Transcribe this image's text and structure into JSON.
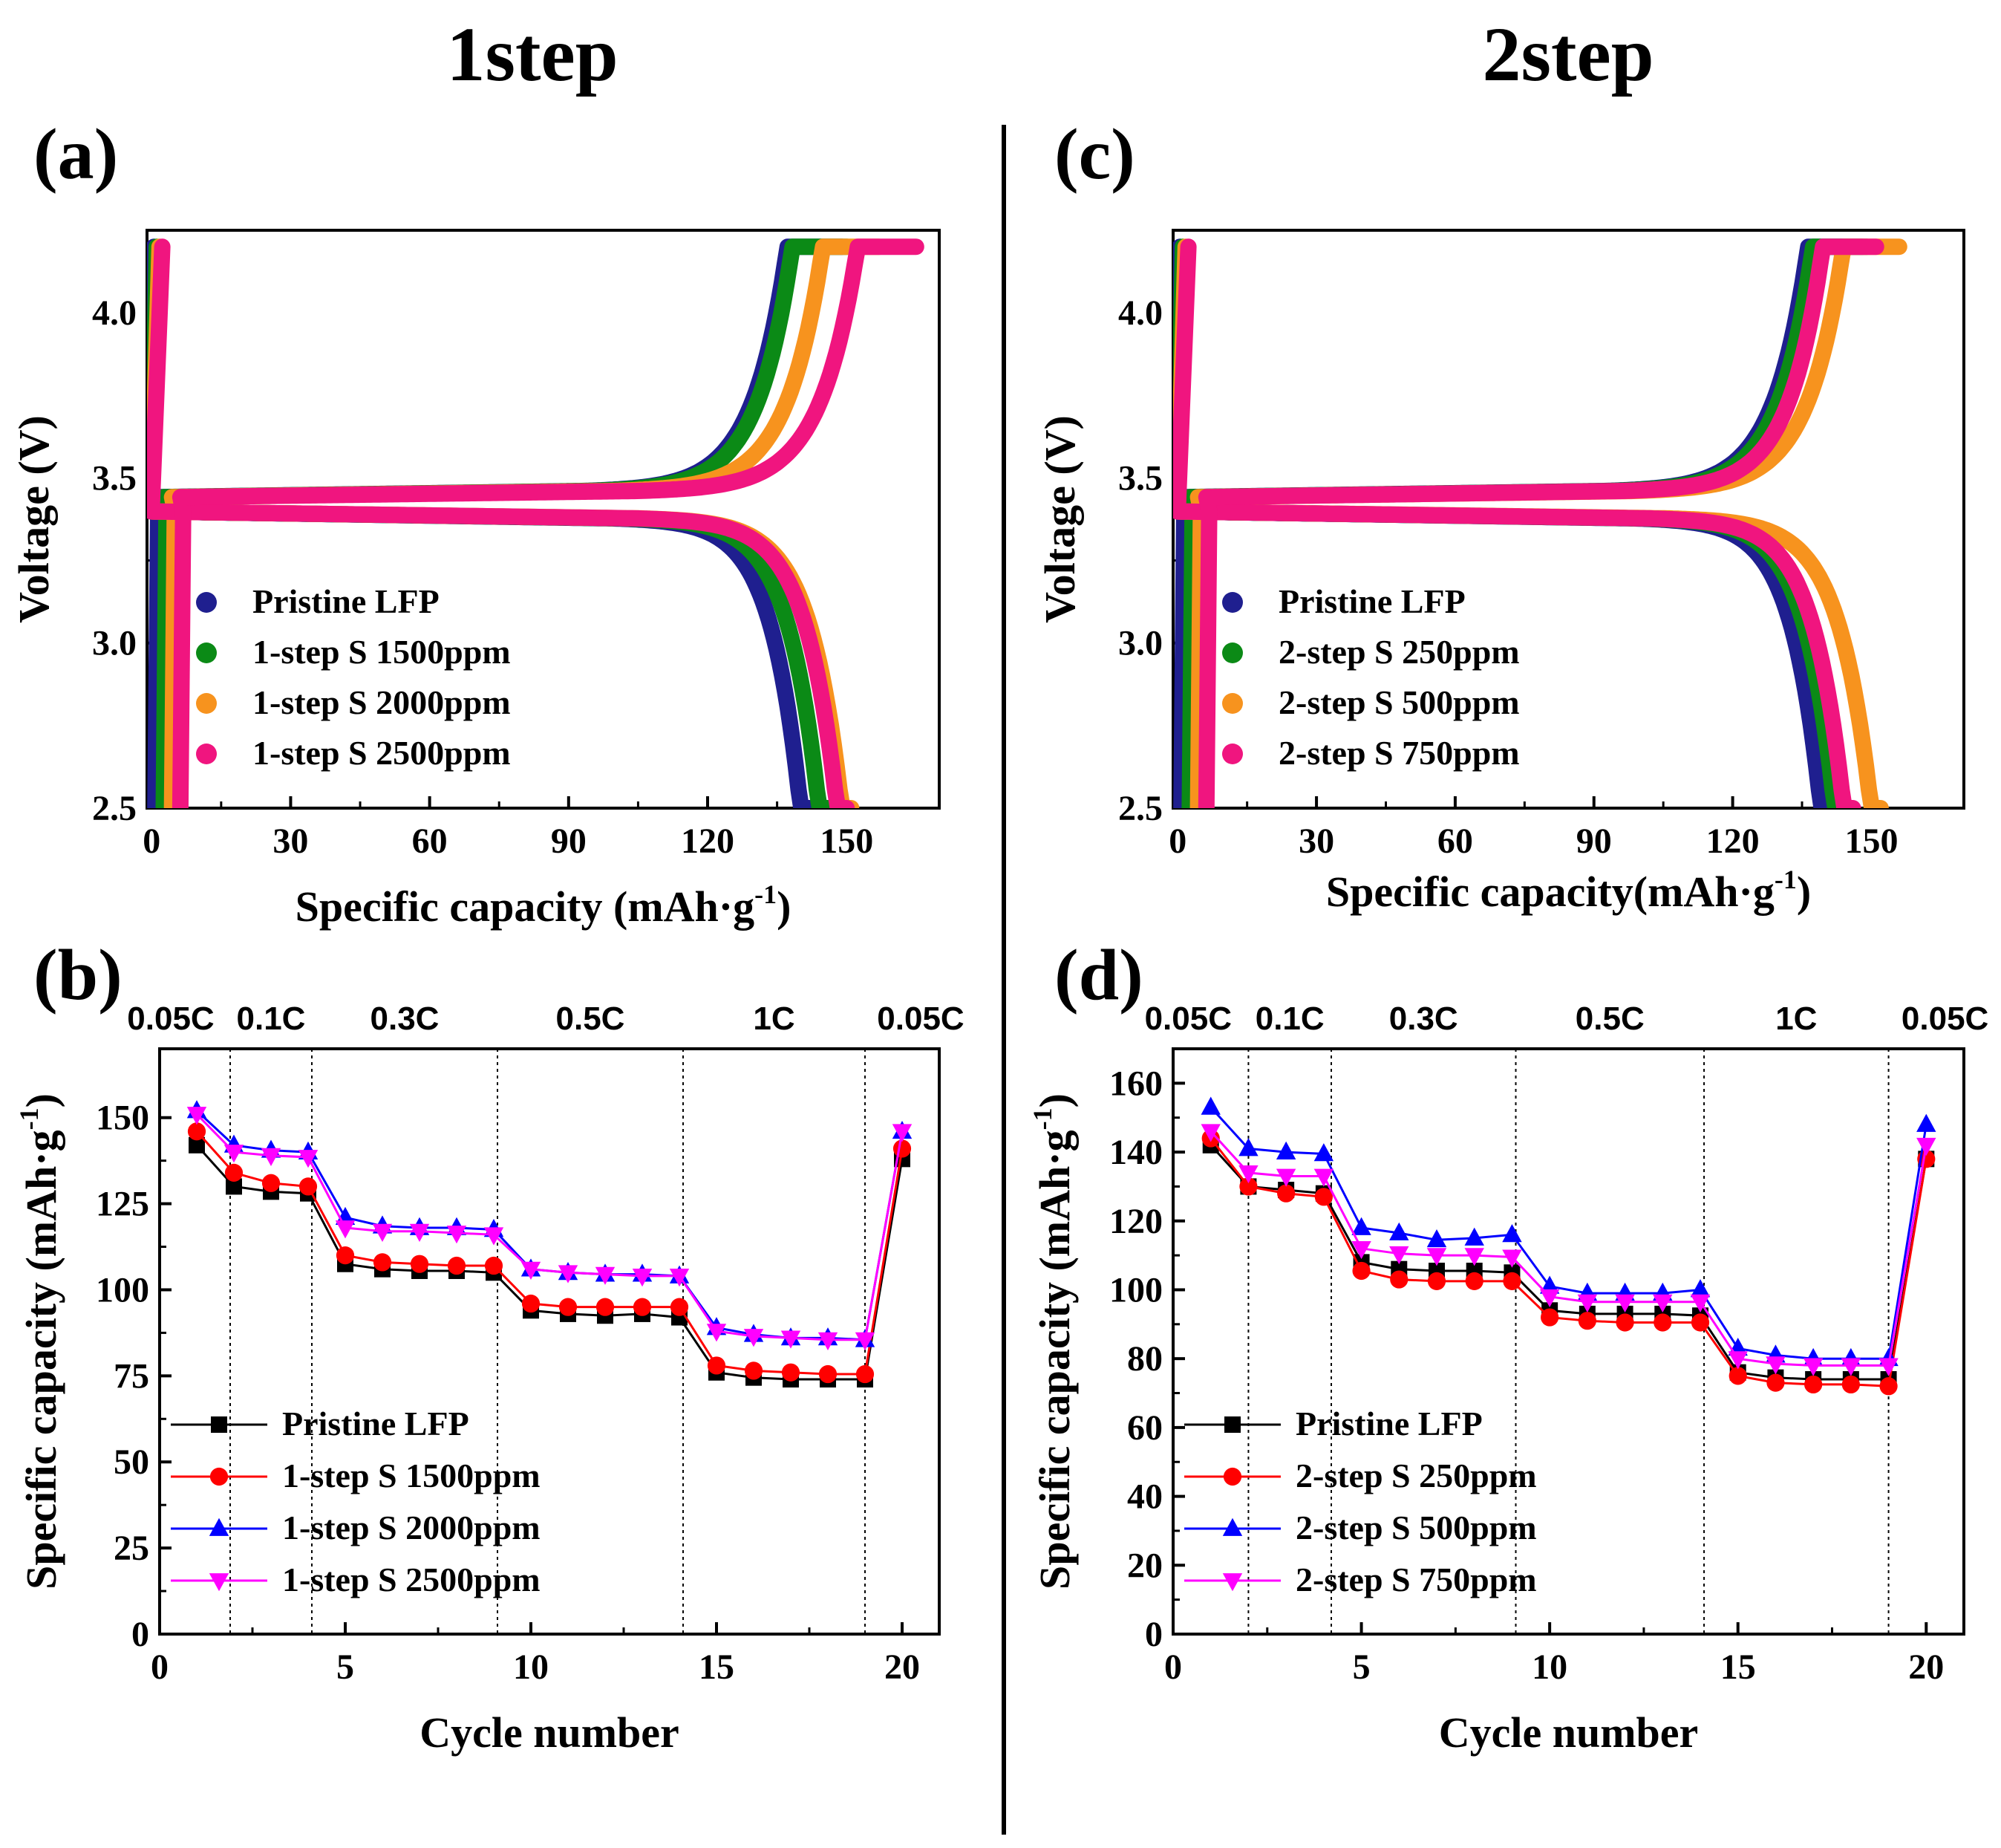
{
  "headers": {
    "left": "1step",
    "right": "2step"
  },
  "colors": {
    "navy": "#1f1f8f",
    "green": "#0b8a16",
    "orange": "#f7931e",
    "magenta": "#f0157f",
    "black": "#000000",
    "red": "#ff0000",
    "blue": "#0000ff",
    "violet": "#ff00ff"
  },
  "chart_data": [
    {
      "id": "a",
      "panel_label": "(a)",
      "type": "line",
      "xlabel": "Specific capacity (mAh·g",
      "xlabel_sup": "-1",
      "xlabel_end": ")",
      "ylabel": "Voltage (V)",
      "xlim": [
        -1,
        170
      ],
      "ylim": [
        2.5,
        4.25
      ],
      "xticks": [
        0,
        30,
        60,
        90,
        120,
        150
      ],
      "yticks": [
        2.5,
        3.0,
        3.5,
        4.0
      ],
      "ytick_labels": [
        "2.5",
        "3.0",
        "3.5",
        "4.0"
      ],
      "legend": "lower-left",
      "series": [
        {
          "name": "Pristine LFP",
          "color": "navy",
          "charge_cap": 149,
          "discharge_cap": 142
        },
        {
          "name": "1-step S 1500ppm",
          "color": "green",
          "charge_cap": 150,
          "discharge_cap": 146
        },
        {
          "name": "1-step S 2000ppm",
          "color": "orange",
          "charge_cap": 157,
          "discharge_cap": 151
        },
        {
          "name": "1-step S 2500ppm",
          "color": "magenta",
          "charge_cap": 165,
          "discharge_cap": 150
        }
      ]
    },
    {
      "id": "b",
      "panel_label": "(b)",
      "type": "line",
      "xlabel": "Cycle number",
      "ylabel": "Specific capacity (mAh·g",
      "ylabel_sup": "-1",
      "ylabel_end": ")",
      "xlim": [
        0,
        21
      ],
      "ylim": [
        0,
        170
      ],
      "xticks": [
        0,
        5,
        10,
        15,
        20
      ],
      "yticks": [
        0,
        25,
        50,
        75,
        100,
        125,
        150
      ],
      "ytick_labels": [
        "0",
        "25",
        "50",
        "75",
        "100",
        "125",
        "150"
      ],
      "rate_labels": [
        "0.05C",
        "0.1C",
        "0.3C",
        "0.5C",
        "1C",
        "0.05C"
      ],
      "dividers": [
        1.9,
        4.1,
        9.1,
        14.1,
        19.0
      ],
      "legend": "lower-left",
      "x": [
        1,
        2,
        3,
        4,
        5,
        6,
        7,
        8,
        9,
        10,
        11,
        12,
        13,
        14,
        15,
        16,
        17,
        18,
        19,
        20
      ],
      "series": [
        {
          "name": "Pristine LFP",
          "color": "black",
          "marker": "square",
          "values": [
            142,
            130,
            128.5,
            128,
            107.5,
            106,
            105.5,
            105.5,
            105,
            94,
            93,
            92.5,
            93,
            92,
            76,
            74.5,
            74,
            74,
            74,
            138
          ]
        },
        {
          "name": "1-step S 1500ppm",
          "color": "red",
          "marker": "circle",
          "values": [
            146,
            134,
            131,
            130,
            110,
            108,
            107.5,
            107,
            107,
            96,
            95,
            95,
            95,
            95,
            78,
            76.5,
            76,
            75.5,
            75.5,
            141
          ]
        },
        {
          "name": "1-step S 2000ppm",
          "color": "blue",
          "marker": "triangle-up",
          "values": [
            152,
            142,
            140.5,
            140,
            121,
            118.5,
            118,
            118,
            117.5,
            106,
            105,
            104.5,
            104.5,
            104,
            89,
            87,
            86,
            86,
            85.5,
            146
          ]
        },
        {
          "name": "1-step S 2500ppm",
          "color": "violet",
          "marker": "triangle-down",
          "values": [
            151,
            140,
            139,
            138.5,
            118,
            117,
            117,
            116.5,
            116,
            106,
            105,
            104.5,
            104,
            104,
            88,
            86.5,
            86,
            85.5,
            85.5,
            146
          ]
        }
      ]
    },
    {
      "id": "c",
      "panel_label": "(c)",
      "type": "line",
      "xlabel": "Specific capacity(mAh·g",
      "xlabel_sup": "-1",
      "xlabel_end": ")",
      "ylabel": "Voltage (V)",
      "xlim": [
        -1,
        170
      ],
      "ylim": [
        2.5,
        4.25
      ],
      "xticks": [
        0,
        30,
        60,
        90,
        120,
        150
      ],
      "yticks": [
        2.5,
        3.0,
        3.5,
        4.0
      ],
      "ytick_labels": [
        "2.5",
        "3.0",
        "3.5",
        "4.0"
      ],
      "legend": "lower-left",
      "series": [
        {
          "name": "Pristine LFP",
          "color": "navy",
          "charge_cap": 148,
          "discharge_cap": 141
        },
        {
          "name": "2-step S 250ppm",
          "color": "green",
          "charge_cap": 149,
          "discharge_cap": 144
        },
        {
          "name": "2-step S 500ppm",
          "color": "orange",
          "charge_cap": 156,
          "discharge_cap": 152
        },
        {
          "name": "2-step S 750ppm",
          "color": "magenta",
          "charge_cap": 151,
          "discharge_cap": 146
        }
      ]
    },
    {
      "id": "d",
      "panel_label": "(d)",
      "type": "line",
      "xlabel": "Cycle number",
      "ylabel": "Specific capacity (mAh·g",
      "ylabel_sup": "-1",
      "ylabel_end": ")",
      "xlim": [
        0,
        21
      ],
      "ylim": [
        0,
        170
      ],
      "xticks": [
        0,
        5,
        10,
        15,
        20
      ],
      "yticks": [
        0,
        20,
        40,
        60,
        80,
        100,
        120,
        140,
        160
      ],
      "ytick_labels": [
        "0",
        "20",
        "40",
        "60",
        "80",
        "100",
        "120",
        "140",
        "160"
      ],
      "rate_labels": [
        "0.05C",
        "0.1C",
        "0.3C",
        "0.5C",
        "1C",
        "0.05C"
      ],
      "dividers": [
        2.0,
        4.2,
        9.1,
        14.1,
        19.0
      ],
      "legend": "lower-left",
      "x": [
        1,
        2,
        3,
        4,
        5,
        6,
        7,
        8,
        9,
        10,
        11,
        12,
        13,
        14,
        15,
        16,
        17,
        18,
        19,
        20
      ],
      "series": [
        {
          "name": "Pristine LFP",
          "color": "black",
          "marker": "square",
          "values": [
            142,
            130,
            129,
            128,
            108,
            106,
            105.5,
            105.5,
            105,
            94,
            93,
            93,
            93,
            92.5,
            76,
            74.5,
            74,
            74,
            74,
            138
          ]
        },
        {
          "name": "2-step S 250ppm",
          "color": "red",
          "marker": "circle",
          "values": [
            144,
            130,
            128,
            127,
            105.5,
            103,
            102.5,
            102.5,
            102.5,
            92,
            91,
            90.5,
            90.5,
            90.5,
            75,
            73,
            72.5,
            72.5,
            72,
            138
          ]
        },
        {
          "name": "2-step S 500ppm",
          "color": "blue",
          "marker": "triangle-up",
          "values": [
            153,
            141,
            140,
            139.5,
            118,
            116.5,
            114.5,
            115,
            116,
            101,
            99,
            99,
            99,
            100,
            83,
            81,
            80,
            80,
            80,
            148
          ]
        },
        {
          "name": "2-step S 750ppm",
          "color": "violet",
          "marker": "triangle-down",
          "values": [
            146,
            134,
            133,
            133,
            112,
            110.5,
            110,
            110,
            109.5,
            98,
            96.5,
            96.5,
            96.5,
            96.5,
            80,
            78.5,
            78,
            78,
            78,
            142
          ]
        }
      ]
    }
  ]
}
